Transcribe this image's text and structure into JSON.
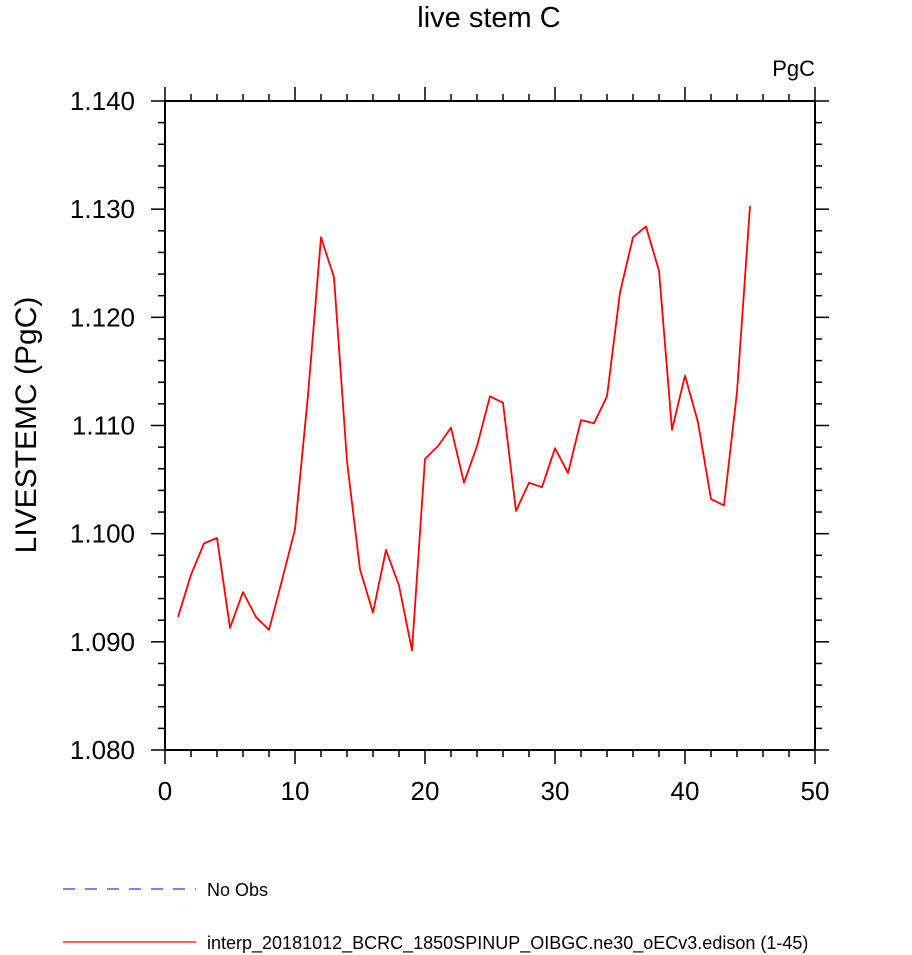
{
  "chart_data": {
    "type": "line",
    "title": "live stem C",
    "units_label": "PgC",
    "ylabel": "LIVESTEMC  (PgC)",
    "xlabel": "",
    "xlim": [
      0,
      50
    ],
    "ylim": [
      1.08,
      1.14
    ],
    "x_ticks": [
      "0",
      "10",
      "20",
      "30",
      "40",
      "50"
    ],
    "y_ticks": [
      "1.080",
      "1.090",
      "1.100",
      "1.110",
      "1.120",
      "1.130",
      "1.140"
    ],
    "grid": false,
    "legend_position": "bottom-left",
    "series": [
      {
        "name": "interp_20181012_BCRC_1850SPINUP_OIBGC.ne30_oECv3.edison (1-45)",
        "color": "#ff0000",
        "style": "solid",
        "x": [
          1,
          2,
          3,
          4,
          5,
          6,
          7,
          8,
          9,
          10,
          11,
          12,
          13,
          14,
          15,
          16,
          17,
          18,
          19,
          20,
          21,
          22,
          23,
          24,
          25,
          26,
          27,
          28,
          29,
          30,
          31,
          32,
          33,
          34,
          35,
          36,
          37,
          38,
          39,
          40,
          41,
          42,
          43,
          44,
          45
        ],
        "y": [
          1.0923,
          1.0962,
          1.0991,
          1.0996,
          1.0913,
          1.0946,
          1.0923,
          1.0911,
          1.0957,
          1.1004,
          1.1128,
          1.1274,
          1.1237,
          1.1067,
          1.0967,
          1.0927,
          1.0985,
          1.0952,
          1.0892,
          1.1069,
          1.1081,
          1.1098,
          1.1047,
          1.1081,
          1.1127,
          1.1121,
          1.1021,
          1.1047,
          1.1043,
          1.1079,
          1.1056,
          1.1105,
          1.1102,
          1.1127,
          1.1223,
          1.1274,
          1.1284,
          1.1243,
          1.1096,
          1.1146,
          1.1103,
          1.1032,
          1.1026,
          1.1131,
          1.1303
        ]
      },
      {
        "name": "No Obs",
        "color": "#3333ff",
        "style": "dashed",
        "x": [],
        "y": []
      }
    ]
  }
}
